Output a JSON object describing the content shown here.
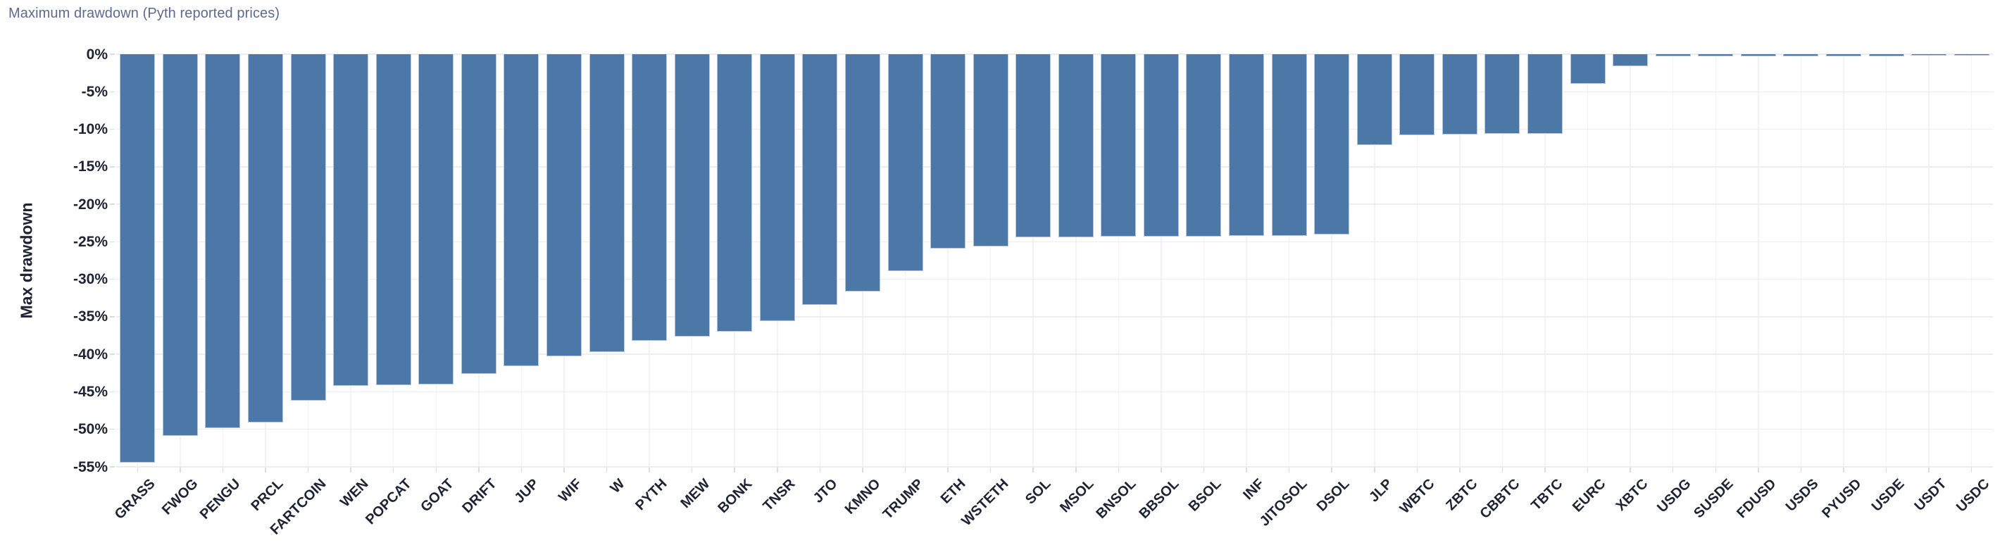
{
  "title": "Maximum drawdown (Pyth reported prices)",
  "chart_data": {
    "type": "bar",
    "title": "Maximum drawdown (Pyth reported prices)",
    "xlabel": "",
    "ylabel": "Max drawdown",
    "ylim": [
      -55,
      0
    ],
    "ytick_step": 5,
    "ytick_labels": [
      "0%",
      "-5%",
      "-10%",
      "-15%",
      "-20%",
      "-25%",
      "-30%",
      "-35%",
      "-40%",
      "-45%",
      "-50%",
      "-55%"
    ],
    "grid": true,
    "legend": "none",
    "unit": "%",
    "categories": [
      "GRASS",
      "FWOG",
      "PENGU",
      "PRCL",
      "FARTCOIN",
      "WEN",
      "POPCAT",
      "GOAT",
      "DRIFT",
      "JUP",
      "WIF",
      "W",
      "PYTH",
      "MEW",
      "BONK",
      "TNSR",
      "JTO",
      "KMNO",
      "TRUMP",
      "ETH",
      "WSTETH",
      "SOL",
      "MSOL",
      "BNSOL",
      "BBSOL",
      "BSOL",
      "INF",
      "JITOSOL",
      "DSOL",
      "JLP",
      "WBTC",
      "ZBTC",
      "CBBTC",
      "TBTC",
      "EURC",
      "XBTC",
      "USDG",
      "SUSDE",
      "FDUSD",
      "USDS",
      "PYUSD",
      "USDE",
      "USDT",
      "USDC"
    ],
    "values": [
      -54.4,
      -50.9,
      -49.8,
      -49.1,
      -46.2,
      -44.2,
      -44.1,
      -44.0,
      -42.6,
      -41.6,
      -40.3,
      -39.7,
      -38.2,
      -37.6,
      -37.0,
      -35.6,
      -33.4,
      -31.6,
      -28.9,
      -25.9,
      -25.6,
      -24.4,
      -24.4,
      -24.35,
      -24.3,
      -24.3,
      -24.25,
      -24.25,
      -24.0,
      -12.1,
      -10.75,
      -10.7,
      -10.6,
      -10.6,
      -3.9,
      -1.6,
      -0.3,
      -0.3,
      -0.3,
      -0.28,
      -0.28,
      -0.25,
      -0.15,
      -0.08
    ]
  },
  "colors": {
    "bar_fill": "#4c78a8",
    "bar_border": "#b7c5db",
    "grid_horizontal": "#ebedf3",
    "grid_vertical": "#f1f2f7",
    "tick_mark": "#d9dce6",
    "title_text": "#5c6a8e",
    "axis_text": "#1e2334",
    "background": "#ffffff"
  }
}
